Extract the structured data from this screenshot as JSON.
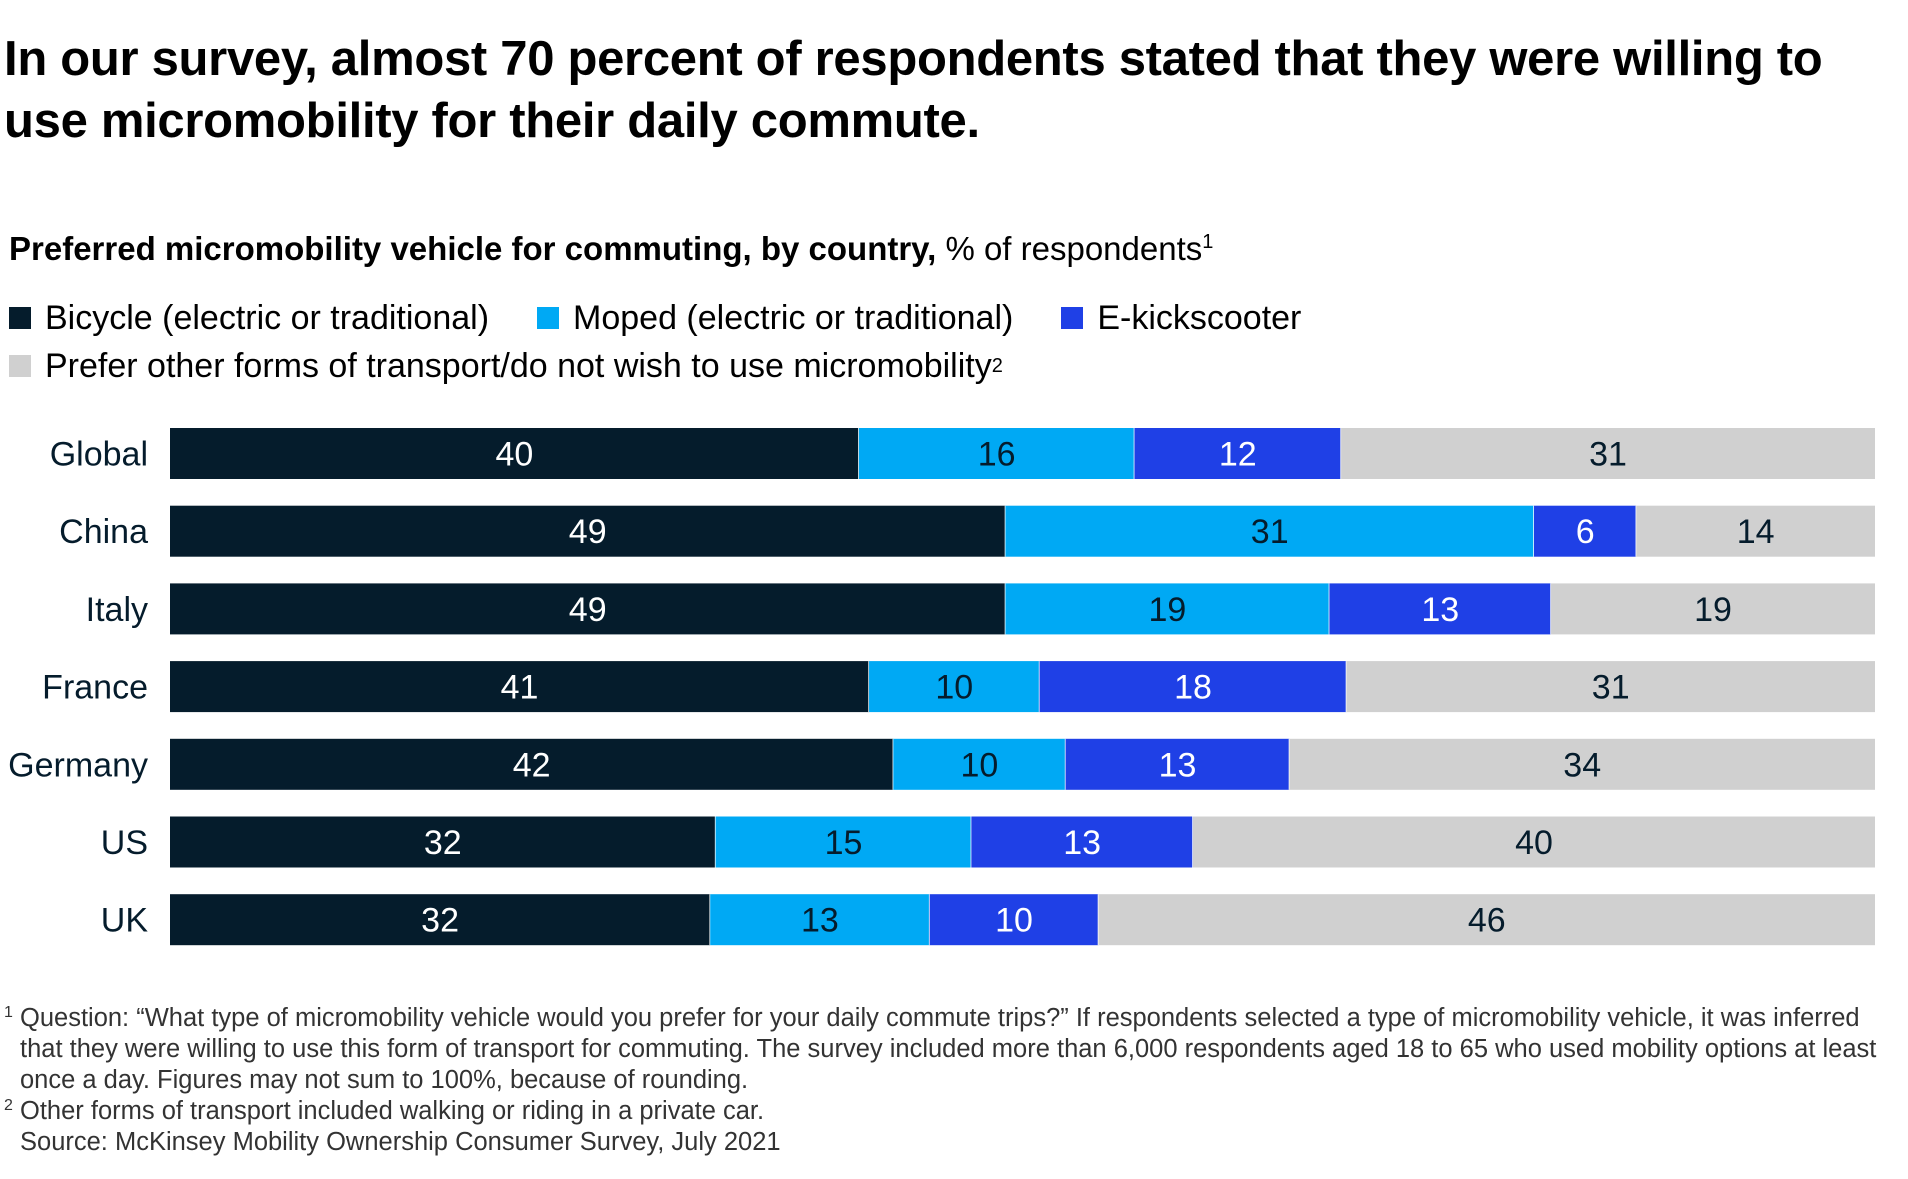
{
  "headline": "In our survey, almost 70 percent of respondents stated that they were willing to use micromobility for their daily commute.",
  "subtitle": {
    "bold": "Preferred micromobility vehicle for commuting, by country,",
    "unit": "% of respondents",
    "footnote_ref": "1"
  },
  "legend": [
    {
      "label": "Bicycle (electric or traditional)",
      "color": "#051C2C"
    },
    {
      "label": "Moped (electric or traditional)",
      "color": "#00A9F4"
    },
    {
      "label": "E-kickscooter",
      "color": "#1F40E6"
    },
    {
      "label": "Prefer other forms of transport/do not wish to use micromobility",
      "color": "#D0D0D0",
      "footnote_ref": "2"
    }
  ],
  "chart_data": {
    "type": "bar",
    "orientation": "horizontal",
    "stacked": true,
    "categories": [
      "Global",
      "China",
      "Italy",
      "France",
      "Germany",
      "US",
      "UK"
    ],
    "series": [
      {
        "name": "Bicycle (electric or traditional)",
        "color": "#051C2C",
        "label_color": "#ffffff",
        "values": [
          40,
          49,
          49,
          41,
          42,
          32,
          32
        ]
      },
      {
        "name": "Moped (electric or traditional)",
        "color": "#00A9F4",
        "label_color": "#051C2C",
        "values": [
          16,
          31,
          19,
          10,
          10,
          15,
          13
        ]
      },
      {
        "name": "E-kickscooter",
        "color": "#1F40E6",
        "label_color": "#ffffff",
        "values": [
          12,
          6,
          13,
          18,
          13,
          13,
          10
        ]
      },
      {
        "name": "Prefer other forms of transport/do not wish to use micromobility",
        "color": "#D0D0D0",
        "label_color": "#051C2C",
        "values": [
          31,
          14,
          19,
          31,
          34,
          40,
          46
        ]
      }
    ],
    "xlim": [
      0,
      100
    ],
    "grid": false,
    "legend_position": "top-left",
    "data_labels": true
  },
  "notes": [
    {
      "mark": "1",
      "text": "Question: “What type of micromobility vehicle would you prefer for your daily commute trips?” If respondents selected a type of micromobility vehicle, it was inferred that they were willing to use this form of transport for commuting. The survey included more than 6,000 respondents aged 18 to 65 who used mobility options at least once a day. Figures may not sum to 100%, because of rounding."
    },
    {
      "mark": "2",
      "text": "Other forms of transport included walking or riding in a private car."
    },
    {
      "mark": "",
      "text": "Source: McKinsey Mobility Ownership Consumer Survey, July 2021"
    }
  ]
}
